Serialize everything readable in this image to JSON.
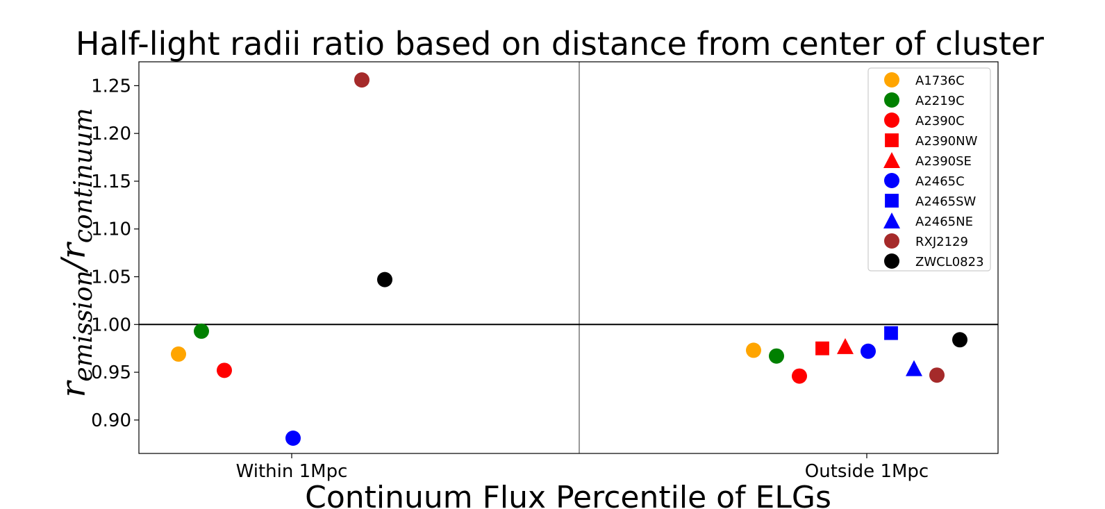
{
  "chart_data": {
    "type": "scatter",
    "title": "Half-light radii ratio based on distance from center of cluster",
    "xlabel": "Continuum Flux Percentile of ELGs",
    "ylabel": {
      "main1": "r",
      "sub1": "emission",
      "main2": "/r",
      "sub2": "continuum"
    },
    "categories": [
      "Within 1Mpc",
      "Outside 1Mpc"
    ],
    "ylim": [
      0.865,
      1.275
    ],
    "yticks": [
      "0.90",
      "0.95",
      "1.00",
      "1.05",
      "1.10",
      "1.15",
      "1.20",
      "1.25"
    ],
    "reference_line": 1.0,
    "legend_position": "top-right",
    "series": [
      {
        "name": "A1736C",
        "color": "#ffa500",
        "marker": "circle",
        "values": [
          0.969,
          0.973
        ]
      },
      {
        "name": "A2219C",
        "color": "#008000",
        "marker": "circle",
        "values": [
          0.993,
          0.967
        ]
      },
      {
        "name": "A2390C",
        "color": "#ff0000",
        "marker": "circle",
        "values": [
          0.952,
          0.946
        ]
      },
      {
        "name": "A2390NW",
        "color": "#ff0000",
        "marker": "square",
        "values": [
          null,
          0.975
        ]
      },
      {
        "name": "A2390SE",
        "color": "#ff0000",
        "marker": "triangle",
        "values": [
          null,
          0.977
        ]
      },
      {
        "name": "A2465C",
        "color": "#0000ff",
        "marker": "circle",
        "values": [
          0.881,
          0.972
        ]
      },
      {
        "name": "A2465SW",
        "color": "#0000ff",
        "marker": "square",
        "values": [
          null,
          0.991
        ]
      },
      {
        "name": "A2465NE",
        "color": "#0000ff",
        "marker": "triangle",
        "values": [
          null,
          0.954
        ]
      },
      {
        "name": "RXJ2129",
        "color": "#a52a2a",
        "marker": "circle",
        "values": [
          1.256,
          0.947
        ]
      },
      {
        "name": "ZWCL0823",
        "color": "#000000",
        "marker": "circle",
        "values": [
          1.047,
          0.984
        ]
      }
    ]
  }
}
